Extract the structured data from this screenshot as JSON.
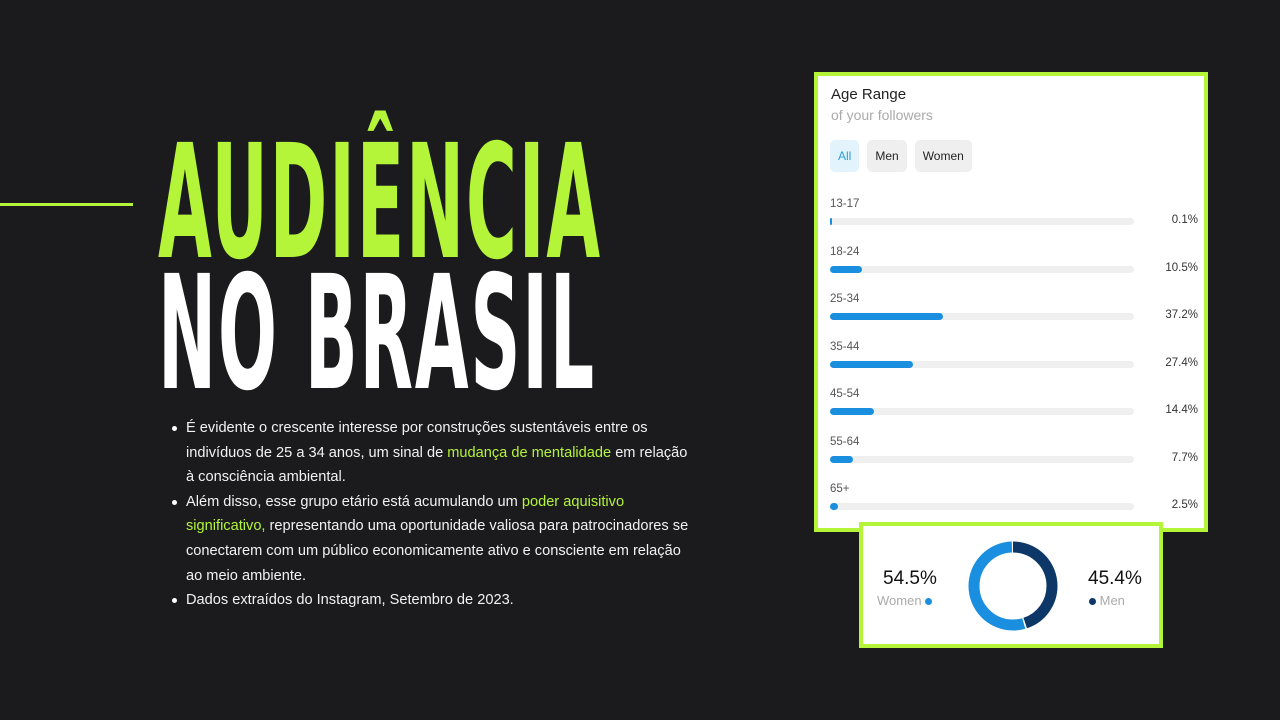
{
  "title": {
    "line1": "AUDIÊNCIA",
    "line2": "NO BRASIL"
  },
  "bullets": [
    {
      "parts": [
        {
          "t": "É evidente o crescente interesse por construções sustentáveis entre os indivíduos de 25 a 34 anos, um sinal de ",
          "h": false
        },
        {
          "t": "mudança de mentalidade",
          "h": true
        },
        {
          "t": " em relação à consciência ambiental.",
          "h": false
        }
      ]
    },
    {
      "parts": [
        {
          "t": "Além disso, esse grupo etário está acumulando um ",
          "h": false
        },
        {
          "t": "poder aquisitivo significativo,",
          "h": true
        },
        {
          "t": " representando uma oportunidade valiosa para patrocinadores se conectarem com um público economicamente ativo e consciente em relação ao meio ambiente.",
          "h": false
        }
      ]
    },
    {
      "parts": [
        {
          "t": "Dados extraídos do Instagram, Setembro de 2023.",
          "h": false
        }
      ]
    }
  ],
  "colors": {
    "accent": "#b4f53a",
    "bar": "#1a8fe0",
    "women": "#1a8fe0",
    "men": "#0d3766"
  },
  "age_card": {
    "title": "Age Range",
    "subtitle": "of your followers",
    "tabs": [
      "All",
      "Men",
      "Women"
    ],
    "active_tab": "All"
  },
  "chart_data": [
    {
      "type": "bar",
      "orientation": "horizontal",
      "title": "Age Range",
      "subtitle": "of your followers",
      "categories": [
        "13-17",
        "18-24",
        "25-34",
        "35-44",
        "45-54",
        "55-64",
        "65+"
      ],
      "values": [
        0.1,
        10.5,
        37.2,
        27.4,
        14.4,
        7.7,
        2.5
      ],
      "labels": [
        "0.1%",
        "10.5%",
        "37.2%",
        "27.4%",
        "14.4%",
        "7.7%",
        "2.5%"
      ],
      "xlim": [
        0,
        100
      ]
    },
    {
      "type": "pie",
      "style": "donut",
      "slices": [
        {
          "name": "Women",
          "value": 54.5,
          "label": "54.5%"
        },
        {
          "name": "Men",
          "value": 45.4,
          "label": "45.4%"
        }
      ]
    }
  ]
}
